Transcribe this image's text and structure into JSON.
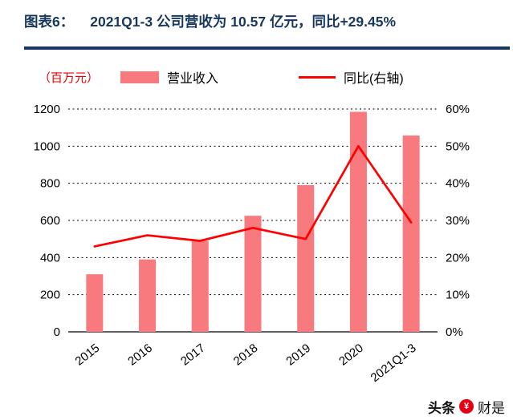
{
  "header": {
    "prefix": "图表6：",
    "title": "2021Q1-3 公司营收为 10.57 亿元，同比+29.45%"
  },
  "legend": {
    "unit": "（百万元）",
    "bar_label": "营业收入",
    "line_label": "同比(右轴)"
  },
  "watermark": {
    "left": "头条",
    "logo_glyph": "¥",
    "right": "财是"
  },
  "colors": {
    "bar": "#F8797E",
    "line": "#FF0000",
    "title": "#17375E",
    "underline": "#17375E",
    "unit_text": "#E60000"
  },
  "chart_data": {
    "type": "bar",
    "subtype": "bar+line combo, line on secondary axis",
    "categories": [
      "2015",
      "2016",
      "2017",
      "2018",
      "2019",
      "2020",
      "2021Q1-3"
    ],
    "series": [
      {
        "name": "营业收入",
        "type": "bar",
        "axis": "left",
        "values": [
          310,
          390,
          490,
          625,
          790,
          1185,
          1057
        ]
      },
      {
        "name": "同比(右轴)",
        "type": "line",
        "axis": "right",
        "values": [
          23,
          26,
          24.5,
          28,
          25,
          50,
          29.45
        ]
      }
    ],
    "left_axis": {
      "min": 0,
      "max": 1200,
      "step": 200,
      "ticks": [
        "0",
        "200",
        "400",
        "600",
        "800",
        "1000",
        "1200"
      ]
    },
    "right_axis": {
      "min": 0,
      "max": 60,
      "step": 10,
      "ticks": [
        "0%",
        "10%",
        "20%",
        "30%",
        "40%",
        "50%",
        "60%"
      ]
    },
    "grid": "dashed horizontal gridlines",
    "legend_position": "top"
  }
}
